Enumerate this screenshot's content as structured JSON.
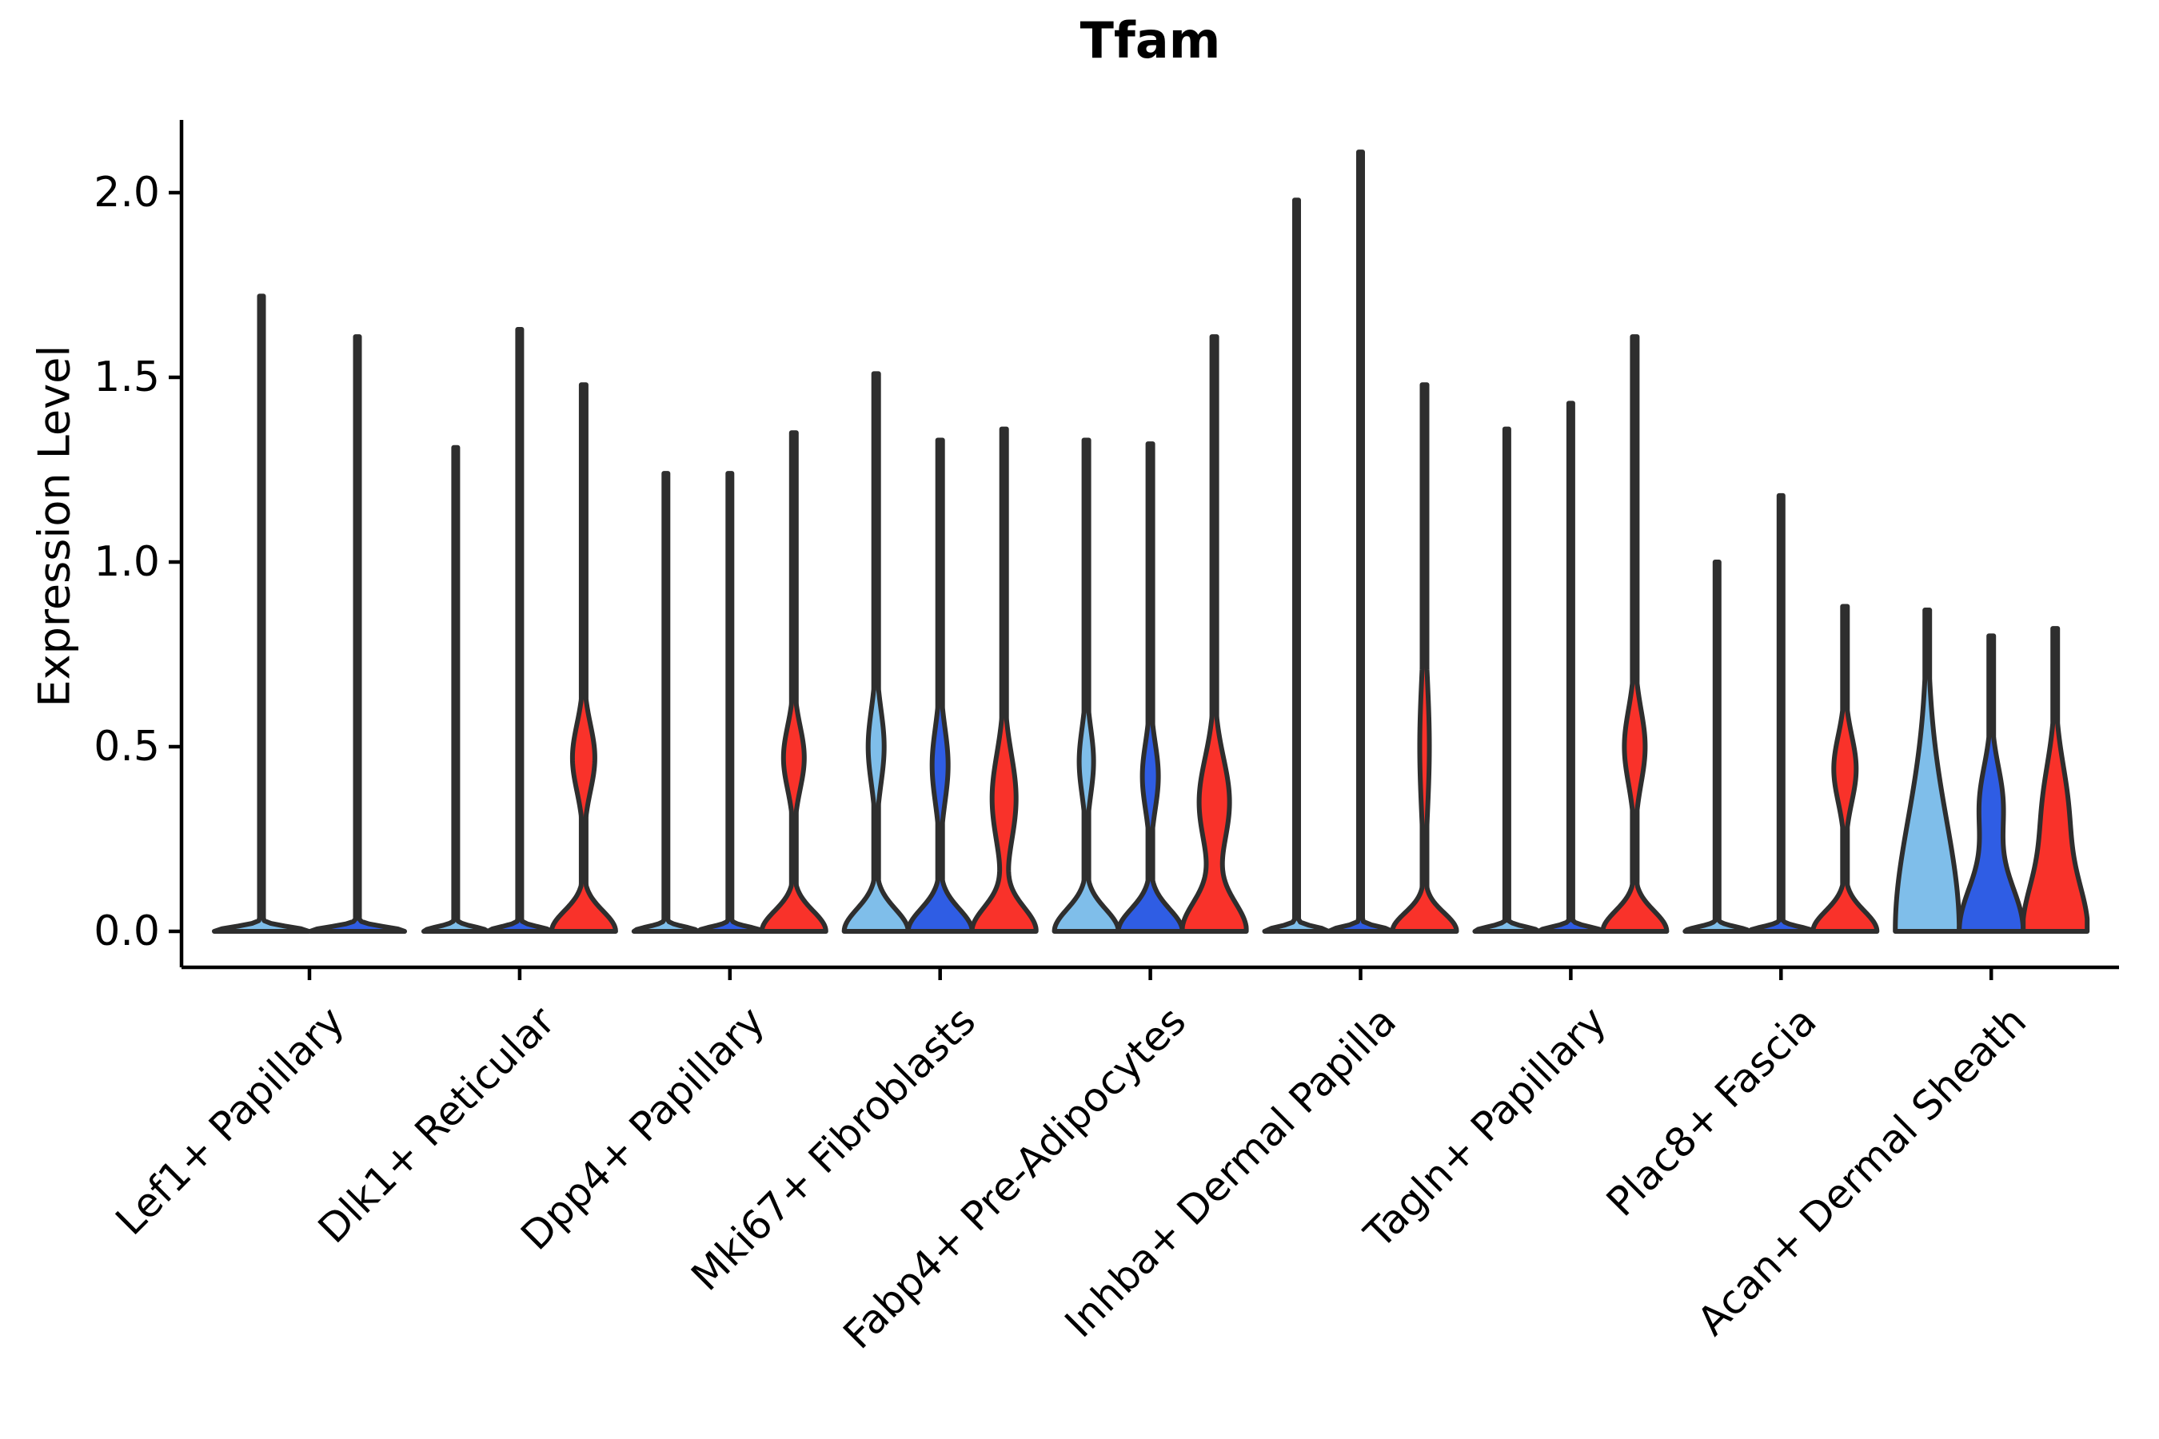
{
  "title": "Tfam",
  "ylabel": "Expression Level",
  "chart_data": {
    "type": "violin",
    "title": "Tfam",
    "xlabel": "",
    "ylabel": "Expression Level",
    "ylim": [
      -0.11,
      2.2
    ],
    "ytick_values": [
      0.0,
      0.5,
      1.0,
      1.5,
      2.0
    ],
    "ytick_labels": [
      "0.0",
      "0.5",
      "1.0",
      "1.5",
      "2.0"
    ],
    "grid": false,
    "legend": "none",
    "outline_color": "#2E2E2E",
    "split_colors": {
      "light_blue": "#7FBEEA",
      "dark_blue": "#2F5DE4",
      "red": "#F9322A"
    },
    "groups": [
      {
        "label": "Lef1+ Papillary",
        "violins": [
          {
            "split": "light_blue",
            "max_expression": 1.72,
            "kind": "collapsed",
            "profile": {
              "base_sigma": 0.012,
              "stem_half": 2.5,
              "bulges": []
            }
          },
          {
            "split": "dark_blue",
            "max_expression": 1.61,
            "kind": "collapsed",
            "profile": {
              "base_sigma": 0.012,
              "stem_half": 2.5,
              "bulges": []
            }
          }
        ]
      },
      {
        "label": "Dlk1+ Reticular",
        "violins": [
          {
            "split": "light_blue",
            "max_expression": 1.31,
            "kind": "collapsed",
            "profile": {
              "base_sigma": 0.012,
              "stem_half": 2.5,
              "bulges": []
            }
          },
          {
            "split": "dark_blue",
            "max_expression": 1.63,
            "kind": "collapsed",
            "profile": {
              "base_sigma": 0.012,
              "stem_half": 2.5,
              "bulges": []
            }
          },
          {
            "split": "red",
            "max_expression": 1.48,
            "kind": "bulged",
            "profile": {
              "base_sigma": 0.055,
              "stem_half": 3,
              "bulges": [
                {
                  "v": 0.47,
                  "amp": 14,
                  "sigma": 0.09
                }
              ]
            }
          }
        ]
      },
      {
        "label": "Dpp4+ Papillary",
        "violins": [
          {
            "split": "light_blue",
            "max_expression": 1.24,
            "kind": "collapsed",
            "profile": {
              "base_sigma": 0.012,
              "stem_half": 2.5,
              "bulges": []
            }
          },
          {
            "split": "dark_blue",
            "max_expression": 1.24,
            "kind": "collapsed",
            "profile": {
              "base_sigma": 0.012,
              "stem_half": 2.5,
              "bulges": []
            }
          },
          {
            "split": "red",
            "max_expression": 1.35,
            "kind": "bulged",
            "profile": {
              "base_sigma": 0.055,
              "stem_half": 3,
              "bulges": [
                {
                  "v": 0.47,
                  "amp": 13,
                  "sigma": 0.085
                }
              ]
            }
          }
        ]
      },
      {
        "label": "Mki67+ Fibroblasts",
        "violins": [
          {
            "split": "light_blue",
            "max_expression": 1.51,
            "kind": "bulged",
            "profile": {
              "base_sigma": 0.06,
              "stem_half": 3,
              "bulges": [
                {
                  "v": 0.5,
                  "amp": 10,
                  "sigma": 0.1
                }
              ]
            }
          },
          {
            "split": "dark_blue",
            "max_expression": 1.33,
            "kind": "bulged",
            "profile": {
              "base_sigma": 0.06,
              "stem_half": 3,
              "bulges": [
                {
                  "v": 0.45,
                  "amp": 10,
                  "sigma": 0.1
                }
              ]
            }
          },
          {
            "split": "red",
            "max_expression": 1.36,
            "kind": "bulged",
            "profile": {
              "base_sigma": 0.065,
              "stem_half": 3,
              "bulges": [
                {
                  "v": 0.36,
                  "amp": 15,
                  "sigma": 0.12
                }
              ]
            }
          }
        ]
      },
      {
        "label": "Fabp4+ Pre-Adipocytes",
        "violins": [
          {
            "split": "light_blue",
            "max_expression": 1.33,
            "kind": "bulged",
            "profile": {
              "base_sigma": 0.06,
              "stem_half": 3,
              "bulges": [
                {
                  "v": 0.46,
                  "amp": 9,
                  "sigma": 0.09
                }
              ]
            }
          },
          {
            "split": "dark_blue",
            "max_expression": 1.32,
            "kind": "bulged",
            "profile": {
              "base_sigma": 0.06,
              "stem_half": 3,
              "bulges": [
                {
                  "v": 0.42,
                  "amp": 10,
                  "sigma": 0.09
                }
              ]
            }
          },
          {
            "split": "red",
            "max_expression": 1.61,
            "kind": "bulged",
            "profile": {
              "base_sigma": 0.08,
              "stem_half": 3,
              "bulges": [
                {
                  "v": 0.35,
                  "amp": 19,
                  "sigma": 0.12
                }
              ]
            }
          }
        ]
      },
      {
        "label": "Inhba+ Dermal Papilla",
        "violins": [
          {
            "split": "light_blue",
            "max_expression": 1.98,
            "kind": "collapsed",
            "profile": {
              "base_sigma": 0.012,
              "stem_half": 2.5,
              "bulges": []
            }
          },
          {
            "split": "dark_blue",
            "max_expression": 2.11,
            "kind": "collapsed",
            "profile": {
              "base_sigma": 0.012,
              "stem_half": 2.5,
              "bulges": []
            }
          },
          {
            "split": "red",
            "max_expression": 1.48,
            "kind": "bulged",
            "profile": {
              "base_sigma": 0.05,
              "stem_half": 3,
              "bulges": [
                {
                  "v": 0.5,
                  "amp": 6,
                  "sigma": 0.18
                }
              ]
            }
          }
        ]
      },
      {
        "label": "Tagln+ Papillary",
        "violins": [
          {
            "split": "light_blue",
            "max_expression": 1.36,
            "kind": "collapsed",
            "profile": {
              "base_sigma": 0.012,
              "stem_half": 2.5,
              "bulges": []
            }
          },
          {
            "split": "dark_blue",
            "max_expression": 1.43,
            "kind": "collapsed",
            "profile": {
              "base_sigma": 0.012,
              "stem_half": 2.5,
              "bulges": []
            }
          },
          {
            "split": "red",
            "max_expression": 1.61,
            "kind": "bulged",
            "profile": {
              "base_sigma": 0.055,
              "stem_half": 3,
              "bulges": [
                {
                  "v": 0.5,
                  "amp": 13,
                  "sigma": 0.1
                }
              ]
            }
          }
        ]
      },
      {
        "label": "Plac8+ Fascia",
        "violins": [
          {
            "split": "light_blue",
            "max_expression": 1.0,
            "kind": "collapsed",
            "profile": {
              "base_sigma": 0.012,
              "stem_half": 2.5,
              "bulges": []
            }
          },
          {
            "split": "dark_blue",
            "max_expression": 1.18,
            "kind": "collapsed",
            "profile": {
              "base_sigma": 0.012,
              "stem_half": 2.5,
              "bulges": []
            }
          },
          {
            "split": "red",
            "max_expression": 0.88,
            "kind": "bulged",
            "profile": {
              "base_sigma": 0.055,
              "stem_half": 3,
              "bulges": [
                {
                  "v": 0.44,
                  "amp": 14,
                  "sigma": 0.09
                }
              ]
            }
          }
        ]
      },
      {
        "label": "Acan+ Dermal Sheath",
        "violins": [
          {
            "split": "light_blue",
            "max_expression": 0.87,
            "kind": "broad",
            "profile": {
              "base_sigma": 0.3,
              "stem_half": 3,
              "bulges": []
            }
          },
          {
            "split": "dark_blue",
            "max_expression": 0.8,
            "kind": "bulged",
            "profile": {
              "base_sigma": 0.13,
              "stem_half": 3,
              "bulges": [
                {
                  "v": 0.35,
                  "amp": 14,
                  "sigma": 0.1
                }
              ]
            }
          },
          {
            "split": "red",
            "max_expression": 0.82,
            "kind": "bulged",
            "profile": {
              "base_sigma": 0.14,
              "stem_half": 3,
              "bulges": [
                {
                  "v": 0.33,
                  "amp": 15,
                  "sigma": 0.13
                }
              ]
            }
          }
        ]
      }
    ]
  }
}
